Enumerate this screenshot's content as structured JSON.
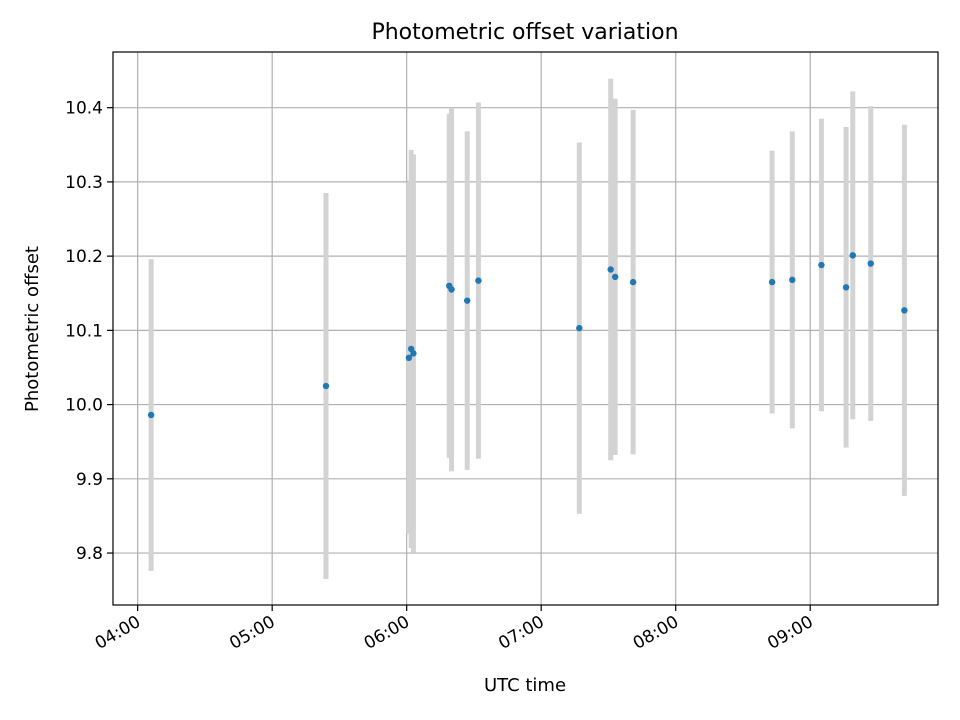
{
  "chart_data": {
    "type": "scatter",
    "title": "Photometric offset variation",
    "xlabel": "UTC time",
    "ylabel": "Photometric offset",
    "xlim": [
      "03:49",
      "09:57"
    ],
    "ylim": [
      9.73,
      10.475
    ],
    "grid": true,
    "xticks": [
      "04:00",
      "05:00",
      "06:00",
      "07:00",
      "08:00",
      "09:00"
    ],
    "yticks": [
      "9.8",
      "9.9",
      "10.0",
      "10.1",
      "10.2",
      "10.3",
      "10.4"
    ],
    "point_color": "#1f77b4",
    "errorbar_color": "#d3d3d3",
    "points": [
      {
        "x": "04:06",
        "y": 9.986,
        "err": 0.21
      },
      {
        "x": "05:24",
        "y": 10.025,
        "err": 0.26
      },
      {
        "x": "06:01",
        "y": 10.063,
        "err": 0.237
      },
      {
        "x": "06:02",
        "y": 10.075,
        "err": 0.268
      },
      {
        "x": "06:03",
        "y": 10.069,
        "err": 0.268
      },
      {
        "x": "06:19",
        "y": 10.16,
        "err": 0.232
      },
      {
        "x": "06:20",
        "y": 10.155,
        "err": 0.245
      },
      {
        "x": "06:27",
        "y": 10.14,
        "err": 0.228
      },
      {
        "x": "06:32",
        "y": 10.167,
        "err": 0.24
      },
      {
        "x": "07:17",
        "y": 10.103,
        "err": 0.25
      },
      {
        "x": "07:31",
        "y": 10.182,
        "err": 0.257
      },
      {
        "x": "07:33",
        "y": 10.172,
        "err": 0.24
      },
      {
        "x": "07:41",
        "y": 10.165,
        "err": 0.232
      },
      {
        "x": "08:43",
        "y": 10.165,
        "err": 0.177
      },
      {
        "x": "08:52",
        "y": 10.168,
        "err": 0.2
      },
      {
        "x": "09:05",
        "y": 10.188,
        "err": 0.197
      },
      {
        "x": "09:16",
        "y": 10.158,
        "err": 0.216
      },
      {
        "x": "09:19",
        "y": 10.201,
        "err": 0.221
      },
      {
        "x": "09:27",
        "y": 10.19,
        "err": 0.212
      },
      {
        "x": "09:42",
        "y": 10.127,
        "err": 0.25
      }
    ]
  }
}
